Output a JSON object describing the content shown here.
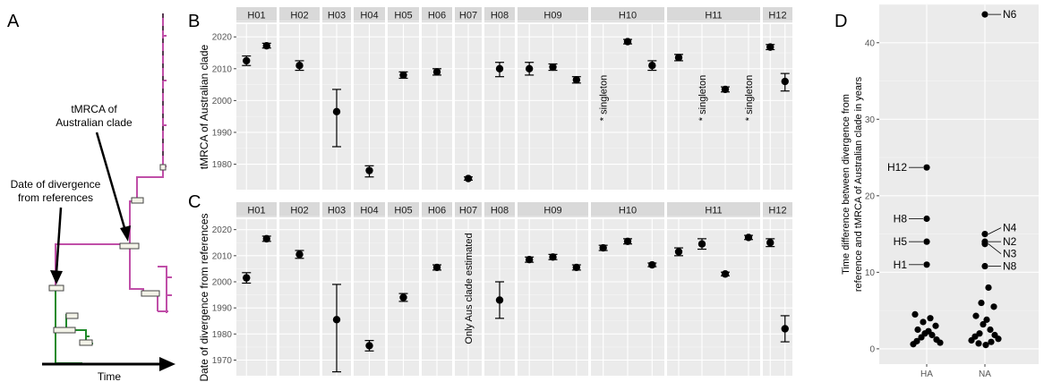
{
  "panel_letters": {
    "a": "A",
    "b": "B",
    "c": "C",
    "d": "D"
  },
  "panel_a": {
    "tmrca_label_line1": "tMRCA of",
    "tmrca_label_line2": "Australian clade",
    "divergence_label_line1": "Date of divergence",
    "divergence_label_line2": "from references",
    "time_label": "Time",
    "colors": {
      "clade": "#c04fa8",
      "reference": "#1f8a2a"
    }
  },
  "chart_data": [
    {
      "type": "scatter",
      "panel": "B",
      "ylabel": "tMRCA of Australian clade",
      "ylim": [
        1972,
        2024
      ],
      "yticks": [
        1980,
        1990,
        2000,
        2010,
        2020
      ],
      "facets": [
        {
          "label": "H01",
          "points": [
            {
              "y": 2012.5,
              "lo": 2011,
              "hi": 2014
            },
            {
              "y": 2017.2,
              "lo": 2016.5,
              "hi": 2018
            }
          ]
        },
        {
          "label": "H02",
          "points": [
            {
              "y": 2011,
              "lo": 2009.5,
              "hi": 2012.5
            }
          ]
        },
        {
          "label": "H03",
          "points": [
            {
              "y": 1996.5,
              "lo": 1985.5,
              "hi": 2003.5
            }
          ]
        },
        {
          "label": "H04",
          "points": [
            {
              "y": 1978,
              "lo": 1976,
              "hi": 1979.5
            }
          ]
        },
        {
          "label": "H05",
          "points": [
            {
              "y": 2008,
              "lo": 2007,
              "hi": 2009
            }
          ]
        },
        {
          "label": "H06",
          "points": [
            {
              "y": 2009,
              "lo": 2008,
              "hi": 2010
            }
          ]
        },
        {
          "label": "H07",
          "points": [
            {
              "y": 1975.5,
              "lo": 1975,
              "hi": 1976
            }
          ]
        },
        {
          "label": "H08",
          "points": [
            {
              "y": 2010,
              "lo": 2007.5,
              "hi": 2012
            }
          ]
        },
        {
          "label": "H09",
          "points": [
            {
              "y": 2010,
              "lo": 2008,
              "hi": 2012
            },
            {
              "y": 2010.5,
              "lo": 2009.5,
              "hi": 2011.5
            },
            {
              "y": 2006.5,
              "lo": 2005.5,
              "hi": 2007.5
            }
          ]
        },
        {
          "label": "H10",
          "points": [
            {
              "y": null,
              "note": "* singleton"
            },
            {
              "y": 2018.5,
              "lo": 2017.8,
              "hi": 2019.2
            },
            {
              "y": 2011,
              "lo": 2009.5,
              "hi": 2012.5
            }
          ]
        },
        {
          "label": "H11",
          "points": [
            {
              "y": 2013.5,
              "lo": 2012.5,
              "hi": 2014.5
            },
            {
              "y": null,
              "note": "* singleton"
            },
            {
              "y": 2003.5,
              "lo": 2002.7,
              "hi": 2004.3
            },
            {
              "y": null,
              "note": "* singleton"
            }
          ]
        },
        {
          "label": "H12",
          "points": [
            {
              "y": 2016.8,
              "lo": 2016,
              "hi": 2017.6
            },
            {
              "y": 2006,
              "lo": 2003,
              "hi": 2008.5
            }
          ]
        }
      ]
    },
    {
      "type": "scatter",
      "panel": "C",
      "ylabel": "Date of divergence from references",
      "ylim": [
        1964,
        2024
      ],
      "yticks": [
        1970,
        1980,
        1990,
        2000,
        2010,
        2020
      ],
      "facets": [
        {
          "label": "H01",
          "points": [
            {
              "y": 2001.5,
              "lo": 1999.5,
              "hi": 2003.5
            },
            {
              "y": 2016.5,
              "lo": 2015.5,
              "hi": 2017.5
            }
          ]
        },
        {
          "label": "H02",
          "points": [
            {
              "y": 2010.5,
              "lo": 2009,
              "hi": 2012
            }
          ]
        },
        {
          "label": "H03",
          "points": [
            {
              "y": 1985.5,
              "lo": 1965.5,
              "hi": 1999
            }
          ]
        },
        {
          "label": "H04",
          "points": [
            {
              "y": 1975.5,
              "lo": 1973.5,
              "hi": 1977.5
            }
          ]
        },
        {
          "label": "H05",
          "points": [
            {
              "y": 1994,
              "lo": 1992.5,
              "hi": 1995.5
            }
          ]
        },
        {
          "label": "H06",
          "points": [
            {
              "y": 2005.5,
              "lo": 2004.5,
              "hi": 2006.5
            }
          ]
        },
        {
          "label": "H07",
          "points": [
            {
              "y": null,
              "note": "Only Aus clade estimated"
            }
          ]
        },
        {
          "label": "H08",
          "points": [
            {
              "y": 1993,
              "lo": 1986,
              "hi": 2000
            }
          ]
        },
        {
          "label": "H09",
          "points": [
            {
              "y": 2008.5,
              "lo": 2007.5,
              "hi": 2009.5
            },
            {
              "y": 2009.5,
              "lo": 2008.5,
              "hi": 2010.5
            },
            {
              "y": 2005.5,
              "lo": 2004.5,
              "hi": 2006.5
            }
          ]
        },
        {
          "label": "H10",
          "points": [
            {
              "y": 2013,
              "lo": 2012,
              "hi": 2014
            },
            {
              "y": 2015.5,
              "lo": 2014.5,
              "hi": 2016.5
            },
            {
              "y": 2006.5,
              "lo": 2005.8,
              "hi": 2007.2
            }
          ]
        },
        {
          "label": "H11",
          "points": [
            {
              "y": 2011.5,
              "lo": 2010,
              "hi": 2013
            },
            {
              "y": 2014.5,
              "lo": 2012.5,
              "hi": 2016.5
            },
            {
              "y": 2003,
              "lo": 2002.3,
              "hi": 2003.7
            },
            {
              "y": 2017,
              "lo": 2016.2,
              "hi": 2017.8
            }
          ]
        },
        {
          "label": "H12",
          "points": [
            {
              "y": 2015,
              "lo": 2013.5,
              "hi": 2016.5
            },
            {
              "y": 1982,
              "lo": 1977,
              "hi": 1987
            }
          ]
        }
      ]
    },
    {
      "type": "scatter",
      "panel": "D",
      "ylabel_line1": "Time difference between divergence from",
      "ylabel_line2": "reference and tMRCA of Australian clade in years",
      "categories": [
        "HA",
        "NA"
      ],
      "ylim": [
        -2,
        45
      ],
      "yticks": [
        0,
        10,
        20,
        30,
        40
      ],
      "series": [
        {
          "category": "HA",
          "values": [
            23.7,
            17,
            14,
            11,
            4.5,
            4,
            3.5,
            3,
            2.5,
            2.3,
            2,
            1.8,
            1.5,
            1.2,
            1,
            0.8,
            0.6
          ]
        },
        {
          "category": "NA",
          "values": [
            43.7,
            15,
            14,
            13.7,
            10.8,
            8,
            6,
            5.5,
            4.3,
            3.8,
            3.2,
            2.5,
            2,
            1.8,
            1.6,
            1.3,
            1.1,
            0.9,
            0.7,
            0.5
          ]
        }
      ],
      "annotations": [
        {
          "label": "H12",
          "category": "HA",
          "y": 23.7,
          "side": "left"
        },
        {
          "label": "H8",
          "category": "HA",
          "y": 17,
          "side": "left"
        },
        {
          "label": "H5",
          "category": "HA",
          "y": 14,
          "side": "left"
        },
        {
          "label": "H1",
          "category": "HA",
          "y": 11,
          "side": "left"
        },
        {
          "label": "N6",
          "category": "NA",
          "y": 43.7,
          "side": "right"
        },
        {
          "label": "N4",
          "category": "NA",
          "y": 15,
          "side": "right"
        },
        {
          "label": "N2",
          "category": "NA",
          "y": 14,
          "side": "right"
        },
        {
          "label": "N3",
          "category": "NA",
          "y": 13.7,
          "side": "right"
        },
        {
          "label": "N8",
          "category": "NA",
          "y": 10.8,
          "side": "right"
        }
      ]
    }
  ]
}
